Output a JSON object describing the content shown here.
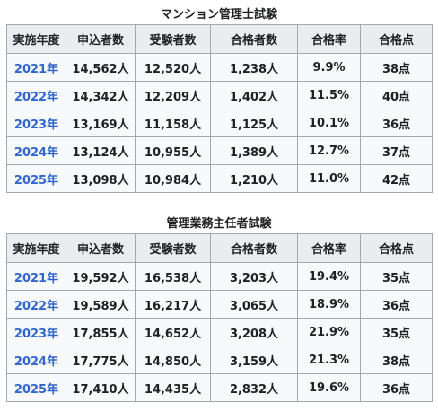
{
  "tables": [
    {
      "title": "マンション管理士試験",
      "headers": [
        "実施年度",
        "申込者数",
        "受験者数",
        "合格者数",
        "合格率",
        "合格点"
      ],
      "rows": [
        [
          "2021年",
          "14,562人",
          "12,520人",
          "1,238人",
          "9.9%",
          "38点"
        ],
        [
          "2022年",
          "14,342人",
          "12,209人",
          "1,402人",
          "11.5%",
          "40点"
        ],
        [
          "2023年",
          "13,169人",
          "11,158人",
          "1,125人",
          "10.1%",
          "36点"
        ],
        [
          "2024年",
          "13,124人",
          "10,955人",
          "1,389人",
          "12.7%",
          "37点"
        ],
        [
          "2025年",
          "13,098人",
          "10,984人",
          "1,210人",
          "11.0%",
          "42点"
        ]
      ]
    },
    {
      "title": "管理業務主任者試験",
      "headers": [
        "実施年度",
        "申込者数",
        "受験者数",
        "合格者数",
        "合格率",
        "合格点"
      ],
      "rows": [
        [
          "2021年",
          "19,592人",
          "16,538人",
          "3,203人",
          "19.4%",
          "35点"
        ],
        [
          "2022年",
          "19,589人",
          "16,217人",
          "3,065人",
          "18.9%",
          "36点"
        ],
        [
          "2023年",
          "17,855人",
          "14,652人",
          "3,208人",
          "21.9%",
          "35点"
        ],
        [
          "2024年",
          "17,775人",
          "14,850人",
          "3,159人",
          "21.3%",
          "38点"
        ],
        [
          "2025年",
          "17,410人",
          "14,435人",
          "2,832人",
          "19.6%",
          "36点"
        ]
      ]
    }
  ],
  "colors": {
    "header_bg": "#eaecf0",
    "cell_bg": "#f8f9fa",
    "border": "#a2a9b1",
    "link": "#3366cc",
    "text": "#202122"
  }
}
